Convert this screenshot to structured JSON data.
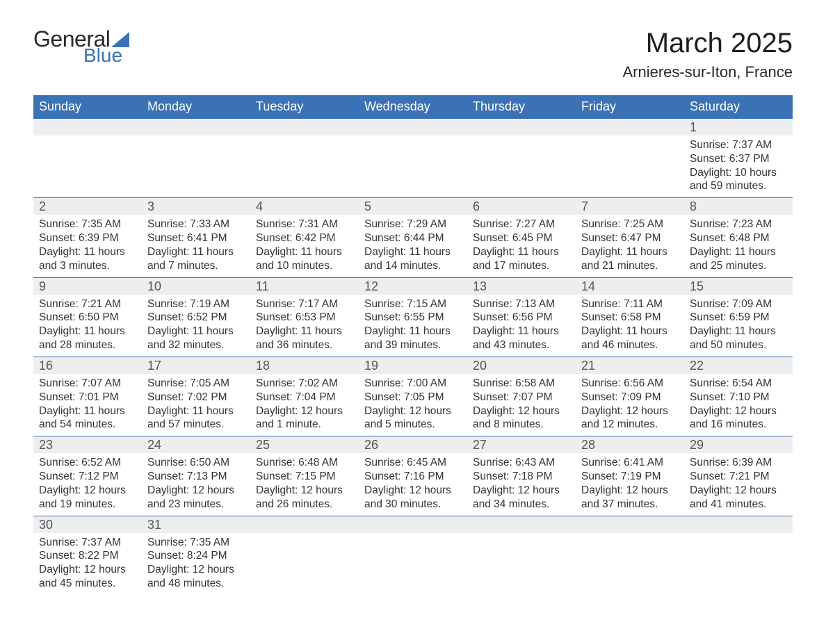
{
  "logo": {
    "text_general": "General",
    "text_blue": "Blue",
    "icon_color": "#3b72b5"
  },
  "title": "March 2025",
  "subtitle": "Arnieres-sur-Iton, France",
  "colors": {
    "header_bg": "#3b72b5",
    "header_fg": "#ffffff",
    "daynum_bg": "#eeeeee",
    "daynum_fg": "#555555",
    "row_border": "#3b72b5",
    "body_text": "#333333"
  },
  "day_headers": [
    "Sunday",
    "Monday",
    "Tuesday",
    "Wednesday",
    "Thursday",
    "Friday",
    "Saturday"
  ],
  "weeks": [
    [
      {
        "n": "",
        "sunrise": "",
        "sunset": "",
        "daylight": ""
      },
      {
        "n": "",
        "sunrise": "",
        "sunset": "",
        "daylight": ""
      },
      {
        "n": "",
        "sunrise": "",
        "sunset": "",
        "daylight": ""
      },
      {
        "n": "",
        "sunrise": "",
        "sunset": "",
        "daylight": ""
      },
      {
        "n": "",
        "sunrise": "",
        "sunset": "",
        "daylight": ""
      },
      {
        "n": "",
        "sunrise": "",
        "sunset": "",
        "daylight": ""
      },
      {
        "n": "1",
        "sunrise": "Sunrise: 7:37 AM",
        "sunset": "Sunset: 6:37 PM",
        "daylight": "Daylight: 10 hours and 59 minutes."
      }
    ],
    [
      {
        "n": "2",
        "sunrise": "Sunrise: 7:35 AM",
        "sunset": "Sunset: 6:39 PM",
        "daylight": "Daylight: 11 hours and 3 minutes."
      },
      {
        "n": "3",
        "sunrise": "Sunrise: 7:33 AM",
        "sunset": "Sunset: 6:41 PM",
        "daylight": "Daylight: 11 hours and 7 minutes."
      },
      {
        "n": "4",
        "sunrise": "Sunrise: 7:31 AM",
        "sunset": "Sunset: 6:42 PM",
        "daylight": "Daylight: 11 hours and 10 minutes."
      },
      {
        "n": "5",
        "sunrise": "Sunrise: 7:29 AM",
        "sunset": "Sunset: 6:44 PM",
        "daylight": "Daylight: 11 hours and 14 minutes."
      },
      {
        "n": "6",
        "sunrise": "Sunrise: 7:27 AM",
        "sunset": "Sunset: 6:45 PM",
        "daylight": "Daylight: 11 hours and 17 minutes."
      },
      {
        "n": "7",
        "sunrise": "Sunrise: 7:25 AM",
        "sunset": "Sunset: 6:47 PM",
        "daylight": "Daylight: 11 hours and 21 minutes."
      },
      {
        "n": "8",
        "sunrise": "Sunrise: 7:23 AM",
        "sunset": "Sunset: 6:48 PM",
        "daylight": "Daylight: 11 hours and 25 minutes."
      }
    ],
    [
      {
        "n": "9",
        "sunrise": "Sunrise: 7:21 AM",
        "sunset": "Sunset: 6:50 PM",
        "daylight": "Daylight: 11 hours and 28 minutes."
      },
      {
        "n": "10",
        "sunrise": "Sunrise: 7:19 AM",
        "sunset": "Sunset: 6:52 PM",
        "daylight": "Daylight: 11 hours and 32 minutes."
      },
      {
        "n": "11",
        "sunrise": "Sunrise: 7:17 AM",
        "sunset": "Sunset: 6:53 PM",
        "daylight": "Daylight: 11 hours and 36 minutes."
      },
      {
        "n": "12",
        "sunrise": "Sunrise: 7:15 AM",
        "sunset": "Sunset: 6:55 PM",
        "daylight": "Daylight: 11 hours and 39 minutes."
      },
      {
        "n": "13",
        "sunrise": "Sunrise: 7:13 AM",
        "sunset": "Sunset: 6:56 PM",
        "daylight": "Daylight: 11 hours and 43 minutes."
      },
      {
        "n": "14",
        "sunrise": "Sunrise: 7:11 AM",
        "sunset": "Sunset: 6:58 PM",
        "daylight": "Daylight: 11 hours and 46 minutes."
      },
      {
        "n": "15",
        "sunrise": "Sunrise: 7:09 AM",
        "sunset": "Sunset: 6:59 PM",
        "daylight": "Daylight: 11 hours and 50 minutes."
      }
    ],
    [
      {
        "n": "16",
        "sunrise": "Sunrise: 7:07 AM",
        "sunset": "Sunset: 7:01 PM",
        "daylight": "Daylight: 11 hours and 54 minutes."
      },
      {
        "n": "17",
        "sunrise": "Sunrise: 7:05 AM",
        "sunset": "Sunset: 7:02 PM",
        "daylight": "Daylight: 11 hours and 57 minutes."
      },
      {
        "n": "18",
        "sunrise": "Sunrise: 7:02 AM",
        "sunset": "Sunset: 7:04 PM",
        "daylight": "Daylight: 12 hours and 1 minute."
      },
      {
        "n": "19",
        "sunrise": "Sunrise: 7:00 AM",
        "sunset": "Sunset: 7:05 PM",
        "daylight": "Daylight: 12 hours and 5 minutes."
      },
      {
        "n": "20",
        "sunrise": "Sunrise: 6:58 AM",
        "sunset": "Sunset: 7:07 PM",
        "daylight": "Daylight: 12 hours and 8 minutes."
      },
      {
        "n": "21",
        "sunrise": "Sunrise: 6:56 AM",
        "sunset": "Sunset: 7:09 PM",
        "daylight": "Daylight: 12 hours and 12 minutes."
      },
      {
        "n": "22",
        "sunrise": "Sunrise: 6:54 AM",
        "sunset": "Sunset: 7:10 PM",
        "daylight": "Daylight: 12 hours and 16 minutes."
      }
    ],
    [
      {
        "n": "23",
        "sunrise": "Sunrise: 6:52 AM",
        "sunset": "Sunset: 7:12 PM",
        "daylight": "Daylight: 12 hours and 19 minutes."
      },
      {
        "n": "24",
        "sunrise": "Sunrise: 6:50 AM",
        "sunset": "Sunset: 7:13 PM",
        "daylight": "Daylight: 12 hours and 23 minutes."
      },
      {
        "n": "25",
        "sunrise": "Sunrise: 6:48 AM",
        "sunset": "Sunset: 7:15 PM",
        "daylight": "Daylight: 12 hours and 26 minutes."
      },
      {
        "n": "26",
        "sunrise": "Sunrise: 6:45 AM",
        "sunset": "Sunset: 7:16 PM",
        "daylight": "Daylight: 12 hours and 30 minutes."
      },
      {
        "n": "27",
        "sunrise": "Sunrise: 6:43 AM",
        "sunset": "Sunset: 7:18 PM",
        "daylight": "Daylight: 12 hours and 34 minutes."
      },
      {
        "n": "28",
        "sunrise": "Sunrise: 6:41 AM",
        "sunset": "Sunset: 7:19 PM",
        "daylight": "Daylight: 12 hours and 37 minutes."
      },
      {
        "n": "29",
        "sunrise": "Sunrise: 6:39 AM",
        "sunset": "Sunset: 7:21 PM",
        "daylight": "Daylight: 12 hours and 41 minutes."
      }
    ],
    [
      {
        "n": "30",
        "sunrise": "Sunrise: 7:37 AM",
        "sunset": "Sunset: 8:22 PM",
        "daylight": "Daylight: 12 hours and 45 minutes."
      },
      {
        "n": "31",
        "sunrise": "Sunrise: 7:35 AM",
        "sunset": "Sunset: 8:24 PM",
        "daylight": "Daylight: 12 hours and 48 minutes."
      },
      {
        "n": "",
        "sunrise": "",
        "sunset": "",
        "daylight": ""
      },
      {
        "n": "",
        "sunrise": "",
        "sunset": "",
        "daylight": ""
      },
      {
        "n": "",
        "sunrise": "",
        "sunset": "",
        "daylight": ""
      },
      {
        "n": "",
        "sunrise": "",
        "sunset": "",
        "daylight": ""
      },
      {
        "n": "",
        "sunrise": "",
        "sunset": "",
        "daylight": ""
      }
    ]
  ]
}
